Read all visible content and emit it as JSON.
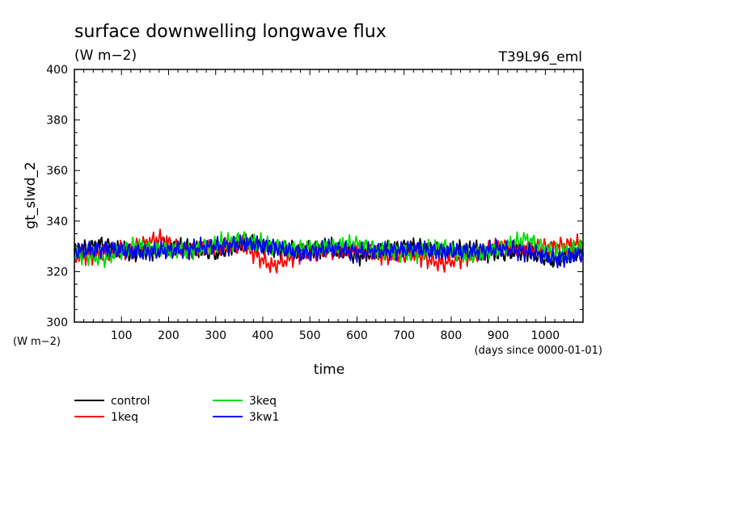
{
  "chart_data": {
    "type": "line",
    "title": "surface downwelling longwave flux",
    "units_label": "(W m−2)",
    "run_label": "T39L96_eml",
    "ylabel": "gt_slwd_2",
    "y_units": "(W m−2)",
    "xlabel": "time",
    "x_units": "(days since 0000-01-01)",
    "xlim": [
      0,
      1080
    ],
    "ylim": [
      300,
      400
    ],
    "x_ticks": [
      100,
      200,
      300,
      400,
      500,
      600,
      700,
      800,
      900,
      1000
    ],
    "y_ticks": [
      300,
      320,
      340,
      360,
      380,
      400
    ],
    "grid": false,
    "legend_position": "bottom-left",
    "series": [
      {
        "name": "control",
        "color": "#000000",
        "x": [
          0,
          60,
          120,
          180,
          240,
          300,
          360,
          420,
          480,
          540,
          600,
          660,
          720,
          780,
          840,
          900,
          960,
          1020,
          1080
        ],
        "values": [
          328,
          331,
          327,
          329,
          330,
          327,
          332,
          329,
          328,
          330,
          326,
          329,
          330,
          328,
          329,
          327,
          328,
          324,
          329
        ]
      },
      {
        "name": "1keq",
        "color": "#ff0000",
        "x": [
          0,
          60,
          120,
          180,
          240,
          300,
          360,
          420,
          480,
          540,
          600,
          660,
          720,
          780,
          840,
          900,
          960,
          1020,
          1080
        ],
        "values": [
          326,
          327,
          329,
          333,
          328,
          330,
          330,
          322,
          327,
          328,
          329,
          326,
          327,
          323,
          326,
          330,
          329,
          330,
          331
        ]
      },
      {
        "name": "3keq",
        "color": "#00dd00",
        "x": [
          0,
          60,
          120,
          180,
          240,
          300,
          360,
          420,
          480,
          540,
          600,
          660,
          720,
          780,
          840,
          900,
          960,
          1020,
          1080
        ],
        "values": [
          327,
          325,
          330,
          329,
          328,
          331,
          333,
          330,
          329,
          330,
          331,
          328,
          327,
          330,
          326,
          329,
          333,
          327,
          330
        ]
      },
      {
        "name": "3kw1",
        "color": "#0000ff",
        "x": [
          0,
          60,
          120,
          180,
          240,
          300,
          360,
          420,
          480,
          540,
          600,
          660,
          720,
          780,
          840,
          900,
          960,
          1020,
          1080
        ],
        "values": [
          328,
          329,
          328,
          328,
          329,
          330,
          331,
          330,
          327,
          329,
          328,
          328,
          329,
          328,
          328,
          329,
          328,
          325,
          327
        ]
      }
    ]
  }
}
